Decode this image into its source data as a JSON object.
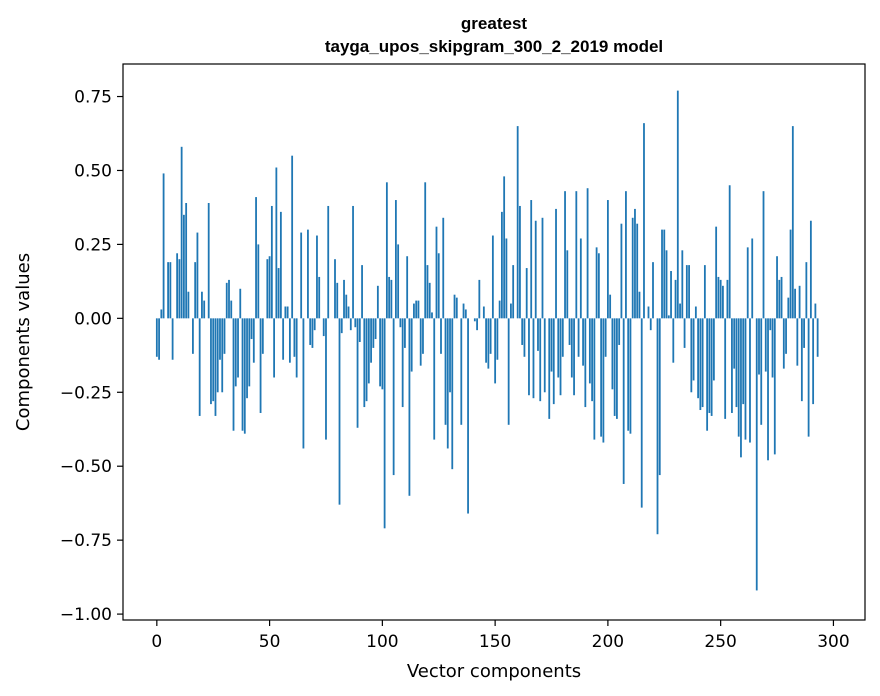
{
  "chart_data": {
    "type": "bar",
    "title_line1": "greatest",
    "title_line2": "tayga_upos_skipgram_300_2_2019 model",
    "xlabel": "Vector components",
    "ylabel": "Components values",
    "xlim": [
      -15,
      314
    ],
    "ylim": [
      -1.02,
      0.86
    ],
    "xticks": [
      0,
      50,
      100,
      150,
      200,
      250,
      300
    ],
    "yticks": [
      0.75,
      0.5,
      0.25,
      0.0,
      -0.25,
      -0.5,
      -0.75,
      -1.0
    ],
    "ytick_labels": [
      "0.75",
      "0.50",
      "0.25",
      "0.00",
      "−0.25",
      "−0.50",
      "−0.75",
      "−1.00"
    ],
    "bar_color": "#1f77b4",
    "grid": false,
    "values": [
      -0.13,
      -0.14,
      0.03,
      0.49,
      0.0,
      0.19,
      0.19,
      -0.14,
      0.0,
      0.22,
      0.2,
      0.58,
      0.35,
      0.39,
      0.09,
      0.0,
      -0.12,
      0.19,
      0.29,
      -0.33,
      0.09,
      0.06,
      0.0,
      0.39,
      -0.29,
      -0.28,
      -0.33,
      -0.25,
      -0.14,
      -0.25,
      -0.12,
      0.12,
      0.13,
      0.06,
      -0.38,
      -0.23,
      -0.2,
      0.1,
      -0.38,
      -0.39,
      -0.27,
      -0.23,
      -0.07,
      -0.15,
      0.41,
      0.25,
      -0.32,
      -0.12,
      0.0,
      0.2,
      0.21,
      0.38,
      -0.2,
      0.51,
      0.17,
      0.36,
      -0.14,
      0.04,
      0.04,
      -0.15,
      0.55,
      -0.13,
      -0.2,
      0.0,
      0.29,
      -0.44,
      0.0,
      0.3,
      -0.09,
      -0.1,
      -0.04,
      0.28,
      0.14,
      0.0,
      -0.06,
      -0.41,
      0.38,
      0.0,
      0.0,
      0.2,
      0.12,
      -0.63,
      -0.05,
      0.13,
      0.08,
      0.04,
      -0.04,
      0.38,
      -0.03,
      -0.37,
      -0.08,
      0.18,
      -0.3,
      -0.28,
      -0.22,
      -0.15,
      -0.1,
      -0.07,
      0.11,
      -0.23,
      -0.24,
      -0.71,
      0.46,
      0.14,
      0.13,
      -0.53,
      0.4,
      0.25,
      -0.03,
      -0.3,
      -0.1,
      0.21,
      -0.6,
      -0.18,
      0.05,
      0.06,
      0.06,
      -0.16,
      -0.12,
      0.46,
      0.18,
      0.12,
      0.02,
      -0.41,
      0.31,
      0.22,
      -0.12,
      0.34,
      -0.36,
      -0.44,
      -0.25,
      -0.51,
      0.08,
      0.07,
      0.0,
      -0.36,
      0.05,
      0.03,
      -0.66,
      0.0,
      0.0,
      -0.01,
      -0.04,
      0.13,
      0.0,
      0.04,
      -0.15,
      -0.17,
      -0.12,
      0.28,
      -0.22,
      -0.14,
      0.06,
      0.36,
      0.48,
      0.27,
      -0.36,
      0.05,
      0.18,
      0.0,
      0.65,
      0.38,
      -0.09,
      -0.13,
      0.17,
      -0.26,
      0.4,
      -0.27,
      0.33,
      -0.11,
      -0.28,
      0.34,
      -0.25,
      0.0,
      -0.34,
      -0.18,
      -0.29,
      0.37,
      -0.2,
      -0.26,
      -0.13,
      0.43,
      0.23,
      -0.09,
      -0.2,
      -0.26,
      0.43,
      -0.13,
      0.27,
      -0.16,
      -0.3,
      0.44,
      -0.22,
      -0.28,
      -0.41,
      0.24,
      0.22,
      -0.4,
      -0.42,
      -0.13,
      0.4,
      0.08,
      -0.24,
      -0.33,
      -0.34,
      -0.09,
      0.32,
      -0.56,
      0.43,
      -0.38,
      -0.39,
      0.34,
      0.37,
      0.32,
      0.09,
      -0.64,
      0.66,
      0.0,
      0.04,
      -0.04,
      0.19,
      0.0,
      -0.73,
      -0.53,
      0.3,
      0.3,
      0.23,
      0.01,
      0.16,
      -0.15,
      0.13,
      0.77,
      0.05,
      0.23,
      -0.1,
      0.18,
      0.18,
      -0.25,
      -0.21,
      0.04,
      -0.27,
      -0.31,
      -0.3,
      0.18,
      -0.38,
      -0.32,
      -0.33,
      -0.21,
      0.31,
      0.14,
      0.13,
      0.11,
      -0.34,
      0.13,
      0.45,
      -0.32,
      -0.17,
      -0.3,
      -0.4,
      -0.47,
      -0.29,
      -0.41,
      0.24,
      -0.42,
      0.27,
      0.0,
      -0.92,
      -0.19,
      -0.36,
      0.43,
      -0.18,
      -0.48,
      -0.04,
      -0.2,
      -0.46,
      0.21,
      0.13,
      0.14,
      -0.17,
      -0.12,
      0.07,
      0.3,
      0.65,
      0.1,
      -0.16,
      0.11,
      -0.28,
      -0.1,
      0.19,
      -0.4,
      0.33,
      -0.29,
      0.05,
      -0.13
    ]
  }
}
